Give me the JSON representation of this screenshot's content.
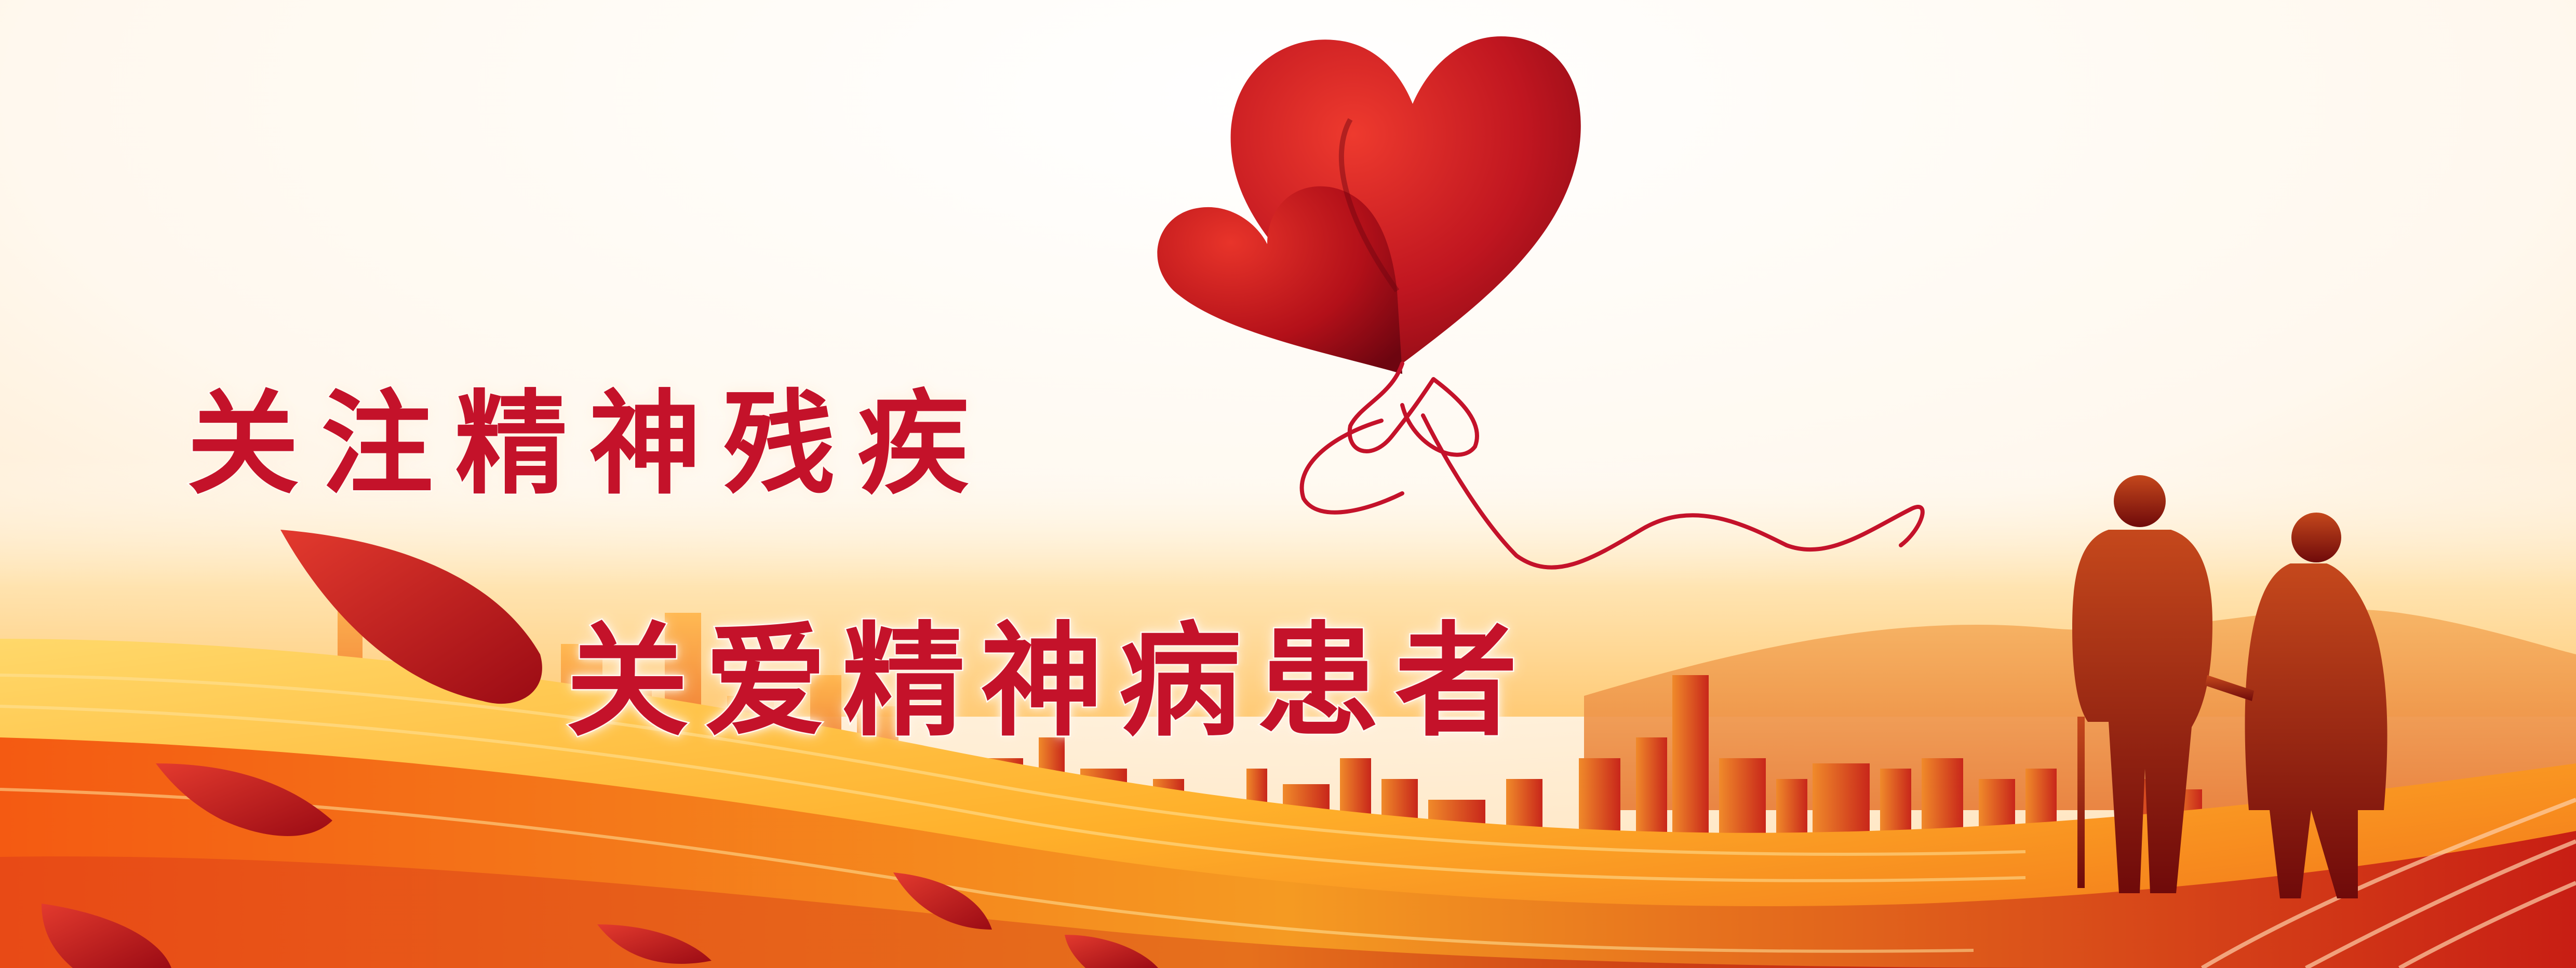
{
  "banner": {
    "line1": "关注精神残疾",
    "line2": "关爱精神病患者"
  },
  "colors": {
    "accent": "#c4122a",
    "heart_dark": "#7d0712",
    "sky_glow": "#fff3d6",
    "hills": "#f5a23a",
    "city_silhouette": "#d23a12"
  },
  "icons": {
    "balloon": "heart-balloon-icon",
    "couple": "elderly-couple-silhouette-icon"
  }
}
